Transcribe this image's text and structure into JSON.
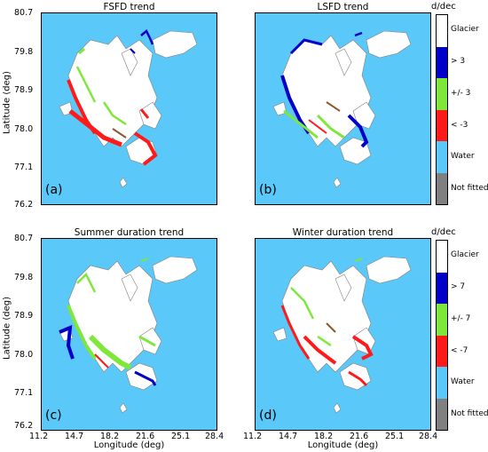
{
  "panels": [
    {
      "title": "FSFD trend",
      "label": "(a)"
    },
    {
      "title": "LSFD trend",
      "label": "(b)"
    },
    {
      "title": "Summer duration trend",
      "label": "(c)"
    },
    {
      "title": "Winter duration trend",
      "label": "(d)"
    }
  ],
  "axes": {
    "ylabel": "Latitude (deg)",
    "xlabel": "Longitude (deg)",
    "lat_ticks": [
      "80.7",
      "79.8",
      "78.9",
      "78.0",
      "77.1",
      "76.2"
    ],
    "lon_ticks": [
      "11.2",
      "14.7",
      "18.2",
      "21.6",
      "25.1",
      "28.4"
    ]
  },
  "legends": [
    {
      "unit": "d/dec",
      "labels": [
        "Glacier",
        "> 3",
        "+/- 3",
        "< -3",
        "Water",
        "Not fitted"
      ]
    },
    {
      "unit": "d/dec",
      "labels": [
        "Glacier",
        "> 7",
        "+/- 7",
        "< -7",
        "Water",
        "Not fitted"
      ]
    }
  ],
  "colors": {
    "glacier": "#ffffff",
    "positive": "#0000c8",
    "neutral": "#7ee83a",
    "negative": "#ff1a1a",
    "water": "#5ac8f8",
    "not_fitted": "#808080"
  }
}
